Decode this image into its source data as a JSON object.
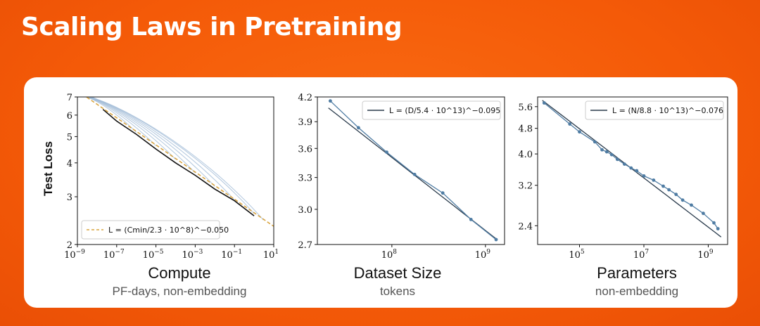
{
  "slide": {
    "title": "Scaling Laws in Pretraining"
  },
  "captions": [
    {
      "title": "Compute",
      "subtitle": "PF-days, non-embedding"
    },
    {
      "title": "Dataset Size",
      "subtitle": "tokens"
    },
    {
      "title": "Parameters",
      "subtitle": "non-embedding"
    }
  ],
  "colors": {
    "background": "#f45a08",
    "frontier": "#111111",
    "fit_dashed": "#d9a541",
    "runs": "#9fbad6",
    "points": "#4f7ca3",
    "fit_line": "#2a3b4c"
  },
  "chart_data": [
    {
      "type": "line",
      "title": "Compute",
      "xlabel": "PF-days, non-embedding",
      "ylabel": "Test Loss",
      "xscale": "log",
      "yscale": "log",
      "xlim": [
        1e-09,
        10
      ],
      "ylim": [
        2,
        7
      ],
      "xticks": [
        {
          "value": 1e-09,
          "label": "10",
          "exp": "−9"
        },
        {
          "value": 1e-07,
          "label": "10",
          "exp": "−7"
        },
        {
          "value": 1e-05,
          "label": "10",
          "exp": "−5"
        },
        {
          "value": 0.001,
          "label": "10",
          "exp": "−3"
        },
        {
          "value": 0.1,
          "label": "10",
          "exp": "−1"
        },
        {
          "value": 10,
          "label": "10",
          "exp": "1"
        }
      ],
      "yticks": [
        {
          "value": 2,
          "label": "2"
        },
        {
          "value": 3,
          "label": "3"
        },
        {
          "value": 4,
          "label": "4"
        },
        {
          "value": 5,
          "label": "5"
        },
        {
          "value": 6,
          "label": "6"
        },
        {
          "value": 7,
          "label": "7"
        }
      ],
      "legend": {
        "position": "bottom-left",
        "label": "L = (Cmin/2.3 · 10^8)^−0.050"
      },
      "fit": {
        "C0": 230000000.0,
        "alpha": 0.05,
        "style": "dashed"
      },
      "frontier": [
        {
          "x": 2e-08,
          "y": 6.3
        },
        {
          "x": 1e-07,
          "y": 5.7
        },
        {
          "x": 1e-06,
          "y": 5.1
        },
        {
          "x": 1e-05,
          "y": 4.5
        },
        {
          "x": 0.0001,
          "y": 4.0
        },
        {
          "x": 0.001,
          "y": 3.6
        },
        {
          "x": 0.01,
          "y": 3.2
        },
        {
          "x": 0.1,
          "y": 2.9
        },
        {
          "x": 1,
          "y": 2.55
        }
      ],
      "runs": [
        {
          "end_x": 1e-06,
          "start_y": 7.0
        },
        {
          "end_x": 1e-05,
          "start_y": 7.0
        },
        {
          "end_x": 0.0001,
          "start_y": 7.0
        },
        {
          "end_x": 0.001,
          "start_y": 7.0
        },
        {
          "end_x": 0.01,
          "start_y": 7.0
        },
        {
          "end_x": 0.1,
          "start_y": 7.0
        },
        {
          "end_x": 1,
          "start_y": 7.0
        },
        {
          "end_x": 3,
          "start_y": 7.0
        }
      ]
    },
    {
      "type": "line",
      "title": "Dataset Size",
      "xlabel": "tokens",
      "ylabel": "",
      "xscale": "log",
      "yscale": "log",
      "xlim": [
        16000000.0,
        1600000000.0
      ],
      "ylim": [
        2.7,
        4.2
      ],
      "xticks": [
        {
          "value": 100000000.0,
          "label": "10",
          "exp": "8"
        },
        {
          "value": 1000000000.0,
          "label": "10",
          "exp": "9"
        }
      ],
      "yticks": [
        {
          "value": 2.7,
          "label": "2.7"
        },
        {
          "value": 3.0,
          "label": "3.0"
        },
        {
          "value": 3.3,
          "label": "3.3"
        },
        {
          "value": 3.6,
          "label": "3.6"
        },
        {
          "value": 3.9,
          "label": "3.9"
        },
        {
          "value": 4.2,
          "label": "4.2"
        }
      ],
      "legend": {
        "position": "top-right",
        "label": "L = (D/5.4 · 10^13)^−0.095"
      },
      "fit": {
        "C0": 54000000000000.0,
        "alpha": 0.095,
        "xrange": [
          21000000.0,
          1300000000.0
        ]
      },
      "points": [
        {
          "x": 22000000.0,
          "y": 4.15
        },
        {
          "x": 44000000.0,
          "y": 3.83
        },
        {
          "x": 88000000.0,
          "y": 3.56
        },
        {
          "x": 175000000.0,
          "y": 3.33
        },
        {
          "x": 350000000.0,
          "y": 3.15
        },
        {
          "x": 700000000.0,
          "y": 2.91
        },
        {
          "x": 1300000000.0,
          "y": 2.74
        }
      ]
    },
    {
      "type": "line",
      "title": "Parameters",
      "xlabel": "non-embedding",
      "ylabel": "",
      "xscale": "log",
      "yscale": "log",
      "xlim": [
        5000.0,
        4000000000.0
      ],
      "ylim": [
        2.1,
        6.0
      ],
      "xticks": [
        {
          "value": 100000.0,
          "label": "10",
          "exp": "5"
        },
        {
          "value": 10000000.0,
          "label": "10",
          "exp": "7"
        },
        {
          "value": 1000000000.0,
          "label": "10",
          "exp": "9"
        }
      ],
      "yticks": [
        {
          "value": 2.4,
          "label": "2.4"
        },
        {
          "value": 3.2,
          "label": "3.2"
        },
        {
          "value": 4.0,
          "label": "4.0"
        },
        {
          "value": 4.8,
          "label": "4.8"
        },
        {
          "value": 5.6,
          "label": "5.6"
        }
      ],
      "legend": {
        "position": "top-right",
        "label": "L = (N/8.8 · 10^13)^−0.076"
      },
      "fit": {
        "C0": 88000000000000.0,
        "alpha": 0.076,
        "xrange": [
          7000.0,
          2500000000.0
        ]
      },
      "points": [
        {
          "x": 8000.0,
          "y": 5.75
        },
        {
          "x": 50000.0,
          "y": 4.95
        },
        {
          "x": 100000.0,
          "y": 4.68
        },
        {
          "x": 300000.0,
          "y": 4.36
        },
        {
          "x": 500000.0,
          "y": 4.12
        },
        {
          "x": 700000.0,
          "y": 4.06
        },
        {
          "x": 1000000.0,
          "y": 3.98
        },
        {
          "x": 1500000.0,
          "y": 3.85
        },
        {
          "x": 2500000.0,
          "y": 3.72
        },
        {
          "x": 4000000.0,
          "y": 3.62
        },
        {
          "x": 6000000.0,
          "y": 3.55
        },
        {
          "x": 10000000.0,
          "y": 3.42
        },
        {
          "x": 20000000.0,
          "y": 3.32
        },
        {
          "x": 40000000.0,
          "y": 3.18
        },
        {
          "x": 60000000.0,
          "y": 3.1
        },
        {
          "x": 100000000.0,
          "y": 3.0
        },
        {
          "x": 160000000.0,
          "y": 2.88
        },
        {
          "x": 300000000.0,
          "y": 2.78
        },
        {
          "x": 700000000.0,
          "y": 2.62
        },
        {
          "x": 1500000000.0,
          "y": 2.45
        },
        {
          "x": 2000000000.0,
          "y": 2.35
        }
      ]
    }
  ]
}
